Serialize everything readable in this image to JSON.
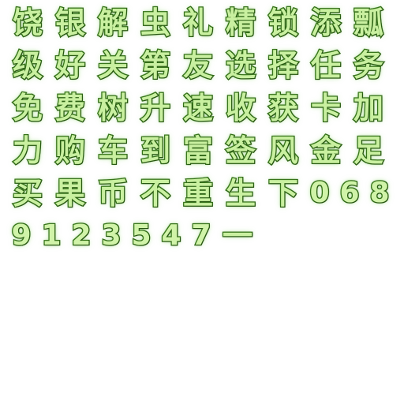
{
  "atlas": {
    "rows": [
      [
        "饶",
        "银",
        "解",
        "虫",
        "礼",
        "精",
        "锁",
        "添",
        "瓢"
      ],
      [
        "级",
        "好",
        "关",
        "第",
        "友",
        "选",
        "择",
        "任",
        "务"
      ],
      [
        "免",
        "费",
        "树",
        "升",
        "速",
        "收",
        "获",
        "卡",
        "加"
      ],
      [
        "力",
        "购",
        "车",
        "到",
        "富",
        "签",
        "风",
        "金",
        "足"
      ],
      [
        "买",
        "果",
        "币",
        "不",
        "重",
        "生",
        "下",
        "0",
        "6",
        "8"
      ],
      [
        "9",
        "1",
        "2",
        "3",
        "5",
        "4",
        "7",
        "一"
      ]
    ],
    "colors": {
      "fill": "#c9f0a0",
      "outline": "#2a5a14",
      "glow": "#8cdc64",
      "background": "#ffffff"
    }
  }
}
